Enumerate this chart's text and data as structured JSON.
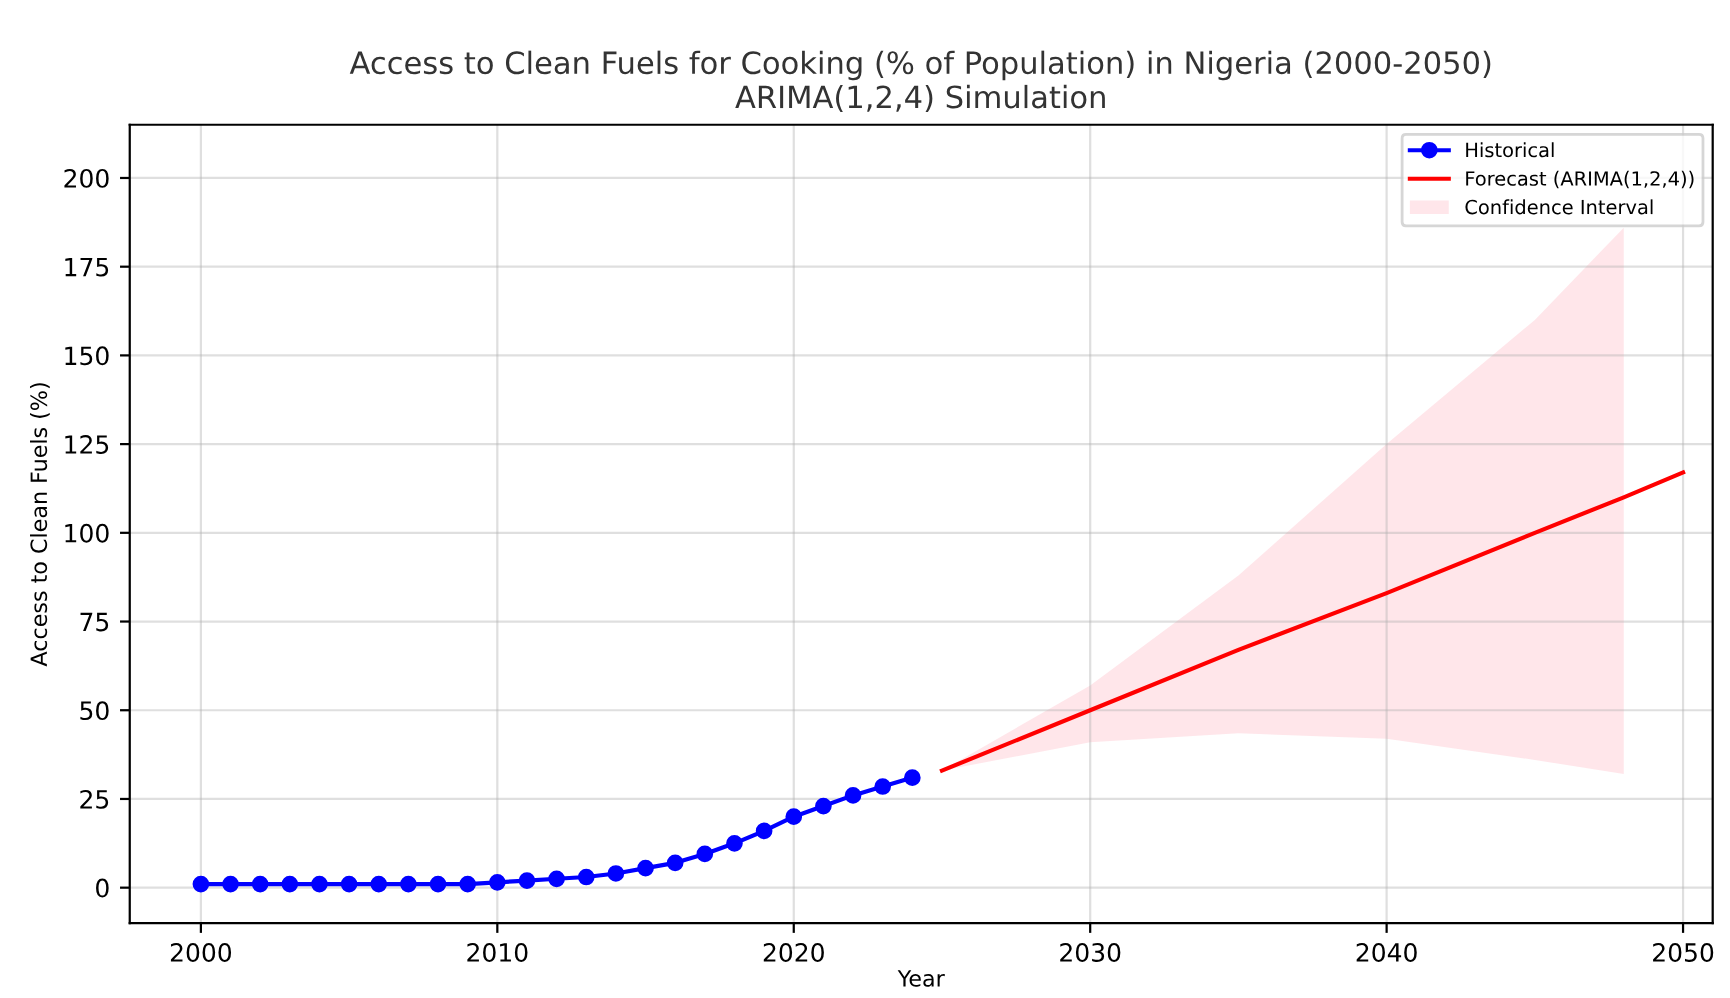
{
  "chart_data": {
    "type": "line",
    "title": "Access to Clean Fuels for Cooking (% of Population) in Nigeria (2000-2050)\nARIMA(1,2,4) Simulation",
    "xlabel": "Year",
    "ylabel": "Access to Clean Fuels (%)",
    "series": [
      {
        "name": "Historical",
        "color": "#0000ff",
        "marker": "circle",
        "x": [
          2000,
          2001,
          2002,
          2003,
          2004,
          2005,
          2006,
          2007,
          2008,
          2009,
          2010,
          2011,
          2012,
          2013,
          2014,
          2015,
          2016,
          2017,
          2018,
          2019,
          2020,
          2021,
          2022,
          2023,
          2024
        ],
        "values": [
          1,
          1,
          1,
          1,
          1,
          1,
          1,
          1,
          1,
          1,
          1.5,
          2,
          2.5,
          3,
          4,
          5.5,
          7,
          9.5,
          12.5,
          16,
          20,
          23,
          26,
          28.5,
          31
        ]
      },
      {
        "name": "Forecast (ARIMA(1,2,4))",
        "color": "#ff0000",
        "marker": "none",
        "x": [
          2025,
          2030,
          2035,
          2040,
          2045,
          2048,
          2050
        ],
        "values": [
          33,
          50,
          67,
          83,
          100,
          110,
          117
        ],
        "lower": [
          33,
          41,
          43.5,
          42,
          36,
          32,
          null
        ],
        "upper": [
          33,
          57,
          88,
          125,
          160,
          186,
          null
        ]
      }
    ],
    "annotations": [
      "Confidence Interval"
    ],
    "xlim": [
      1997.6,
      2051
    ],
    "ylim": [
      -10,
      215
    ],
    "xticks": [
      2000,
      2010,
      2020,
      2030,
      2040,
      2050
    ],
    "yticks": [
      0,
      25,
      50,
      75,
      100,
      125,
      150,
      175,
      200
    ],
    "grid": true,
    "legend": "top right"
  }
}
